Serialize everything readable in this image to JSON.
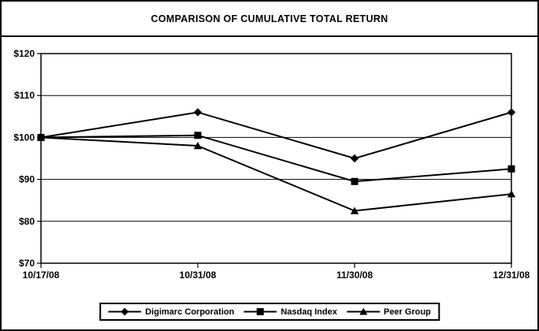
{
  "chart_data": {
    "type": "line",
    "title": "COMPARISON OF CUMULATIVE TOTAL RETURN",
    "categories": [
      "10/17/08",
      "10/31/08",
      "11/30/08",
      "12/31/08"
    ],
    "series": [
      {
        "name": "Digimarc Corporation",
        "marker": "diamond",
        "color": "#000000",
        "values": [
          100,
          106,
          95,
          106
        ]
      },
      {
        "name": "Nasdaq Index",
        "marker": "square",
        "color": "#000000",
        "values": [
          100,
          100.5,
          89.5,
          92.5
        ]
      },
      {
        "name": "Peer Group",
        "marker": "triangle",
        "color": "#000000",
        "values": [
          100,
          98,
          82.5,
          86.5
        ]
      }
    ],
    "xlabel": "",
    "ylabel": "",
    "ylim": [
      70,
      120
    ],
    "ytick_step": 10,
    "ytick_labels": [
      "$70",
      "$80",
      "$90",
      "$100",
      "$110",
      "$120"
    ],
    "grid": "horizontal",
    "legend_position": "bottom",
    "line_color": "#000000",
    "background_color": "#ffffff"
  }
}
